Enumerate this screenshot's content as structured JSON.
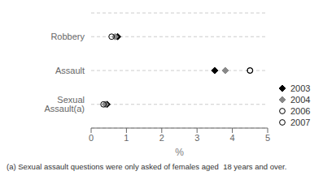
{
  "chart_data": {
    "type": "scatter",
    "categories": [
      "Sexual Assault(a)",
      "Assault",
      "Robbery"
    ],
    "series": [
      {
        "name": "2003",
        "color": "#000000",
        "marker": "diamond",
        "values": [
          0.45,
          3.5,
          0.75
        ]
      },
      {
        "name": "2004",
        "color": "#888888",
        "marker": "diamond",
        "values": [
          0.4,
          3.8,
          0.68
        ]
      },
      {
        "name": "2006",
        "color": "#000000",
        "marker": "circle_open",
        "values": [
          0.35,
          4.5,
          0.58
        ]
      },
      {
        "name": "2007",
        "color": "#000000",
        "marker": "circle_open",
        "values": [
          null,
          4.5,
          null
        ]
      }
    ],
    "xlabel": "%",
    "xlim": [
      0,
      5
    ],
    "xticks": [
      0,
      1,
      2,
      3,
      4,
      5
    ],
    "grid": true,
    "legend": "lower right",
    "annotations": [
      "(a) Sexual assault questions were only asked of females aged  18 years and over."
    ]
  }
}
